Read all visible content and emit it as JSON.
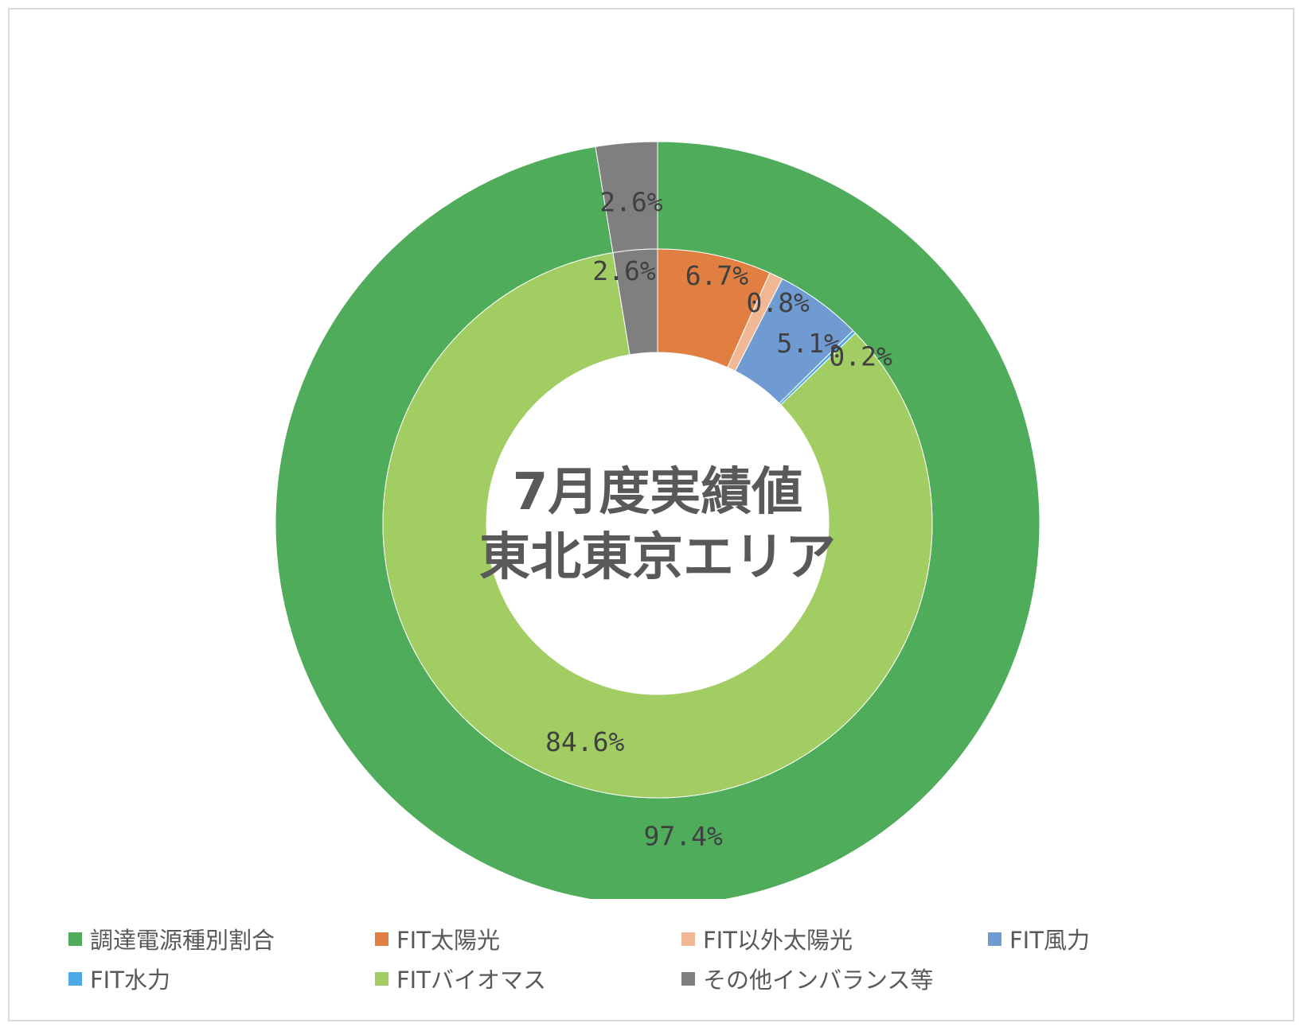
{
  "chart_data": {
    "type": "pie",
    "variant": "nested-donut",
    "title_lines": [
      "7月度実績値",
      "東北東京エリア"
    ],
    "series": [
      {
        "ring": "outer",
        "categories": [
          "調達電源種別割合",
          "その他インバランス等"
        ],
        "values": [
          97.4,
          2.6
        ],
        "labels": [
          "97.4%",
          "2.6%"
        ],
        "colors": [
          "#4EAC5B",
          "#7F7F7F"
        ]
      },
      {
        "ring": "inner",
        "categories": [
          "FIT太陽光",
          "FIT以外太陽光",
          "FIT風力",
          "FIT水力",
          "FITバイオマス",
          "その他インバランス等"
        ],
        "values": [
          6.7,
          0.8,
          5.1,
          0.2,
          84.6,
          2.6
        ],
        "labels": [
          "6.7%",
          "0.8%",
          "5.1%",
          "0.2%",
          "84.6%",
          "2.6%"
        ],
        "colors": [
          "#E07F41",
          "#F2B896",
          "#6F9BD2",
          "#4FA9E6",
          "#A1CD63",
          "#7F7F7F"
        ]
      }
    ],
    "legend": {
      "position": "bottom",
      "items": [
        {
          "label": "調達電源種別割合",
          "color": "#4EAC5B"
        },
        {
          "label": "FIT太陽光",
          "color": "#E07F41"
        },
        {
          "label": "FIT以外太陽光",
          "color": "#F2B896"
        },
        {
          "label": "FIT風力",
          "color": "#6F9BD2"
        },
        {
          "label": "FIT水力",
          "color": "#4FA9E6"
        },
        {
          "label": "FITバイオマス",
          "color": "#A1CD63"
        },
        {
          "label": "その他インバランス等",
          "color": "#7F7F7F"
        }
      ]
    }
  }
}
